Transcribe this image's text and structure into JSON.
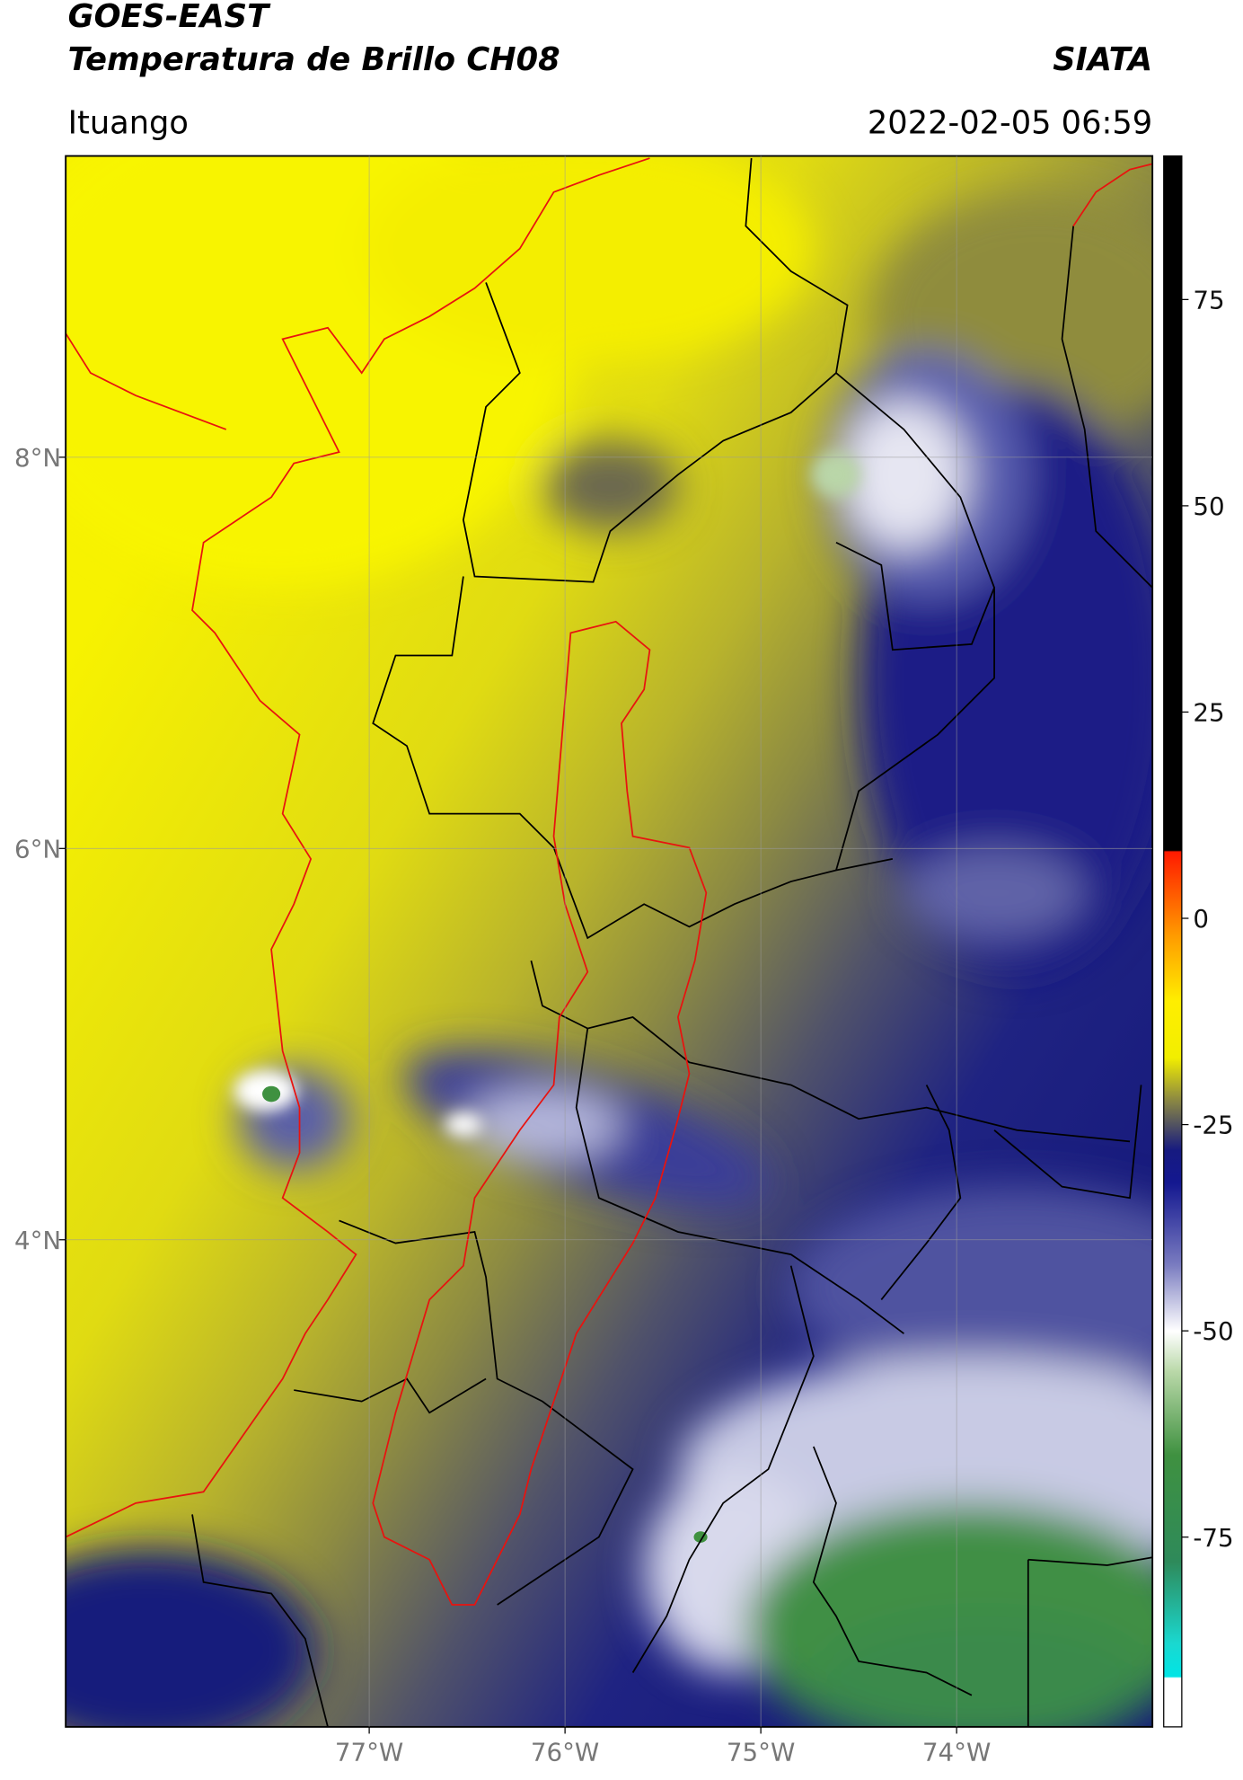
{
  "header": {
    "title": "GOES-EAST",
    "subtitle": "Temperatura de Brillo CH08",
    "source": "SIATA",
    "location": "Ituango",
    "timestamp": "2022-02-05 06:59"
  },
  "map": {
    "xlim": [
      -78.55,
      -73.0
    ],
    "ylim": [
      1.51,
      9.54
    ],
    "xticks": [
      {
        "value": -77,
        "label": "77°W"
      },
      {
        "value": -76,
        "label": "76°W"
      },
      {
        "value": -75,
        "label": "75°W"
      },
      {
        "value": -74,
        "label": "74°W"
      }
    ],
    "yticks": [
      {
        "value": 8,
        "label": "8°N"
      },
      {
        "value": 6,
        "label": "6°N"
      },
      {
        "value": 4,
        "label": "4°N"
      }
    ]
  },
  "colorbar": {
    "lim": [
      -98,
      92.4
    ],
    "ticks": [
      75,
      50,
      25,
      0,
      -25,
      -50,
      -75
    ]
  }
}
